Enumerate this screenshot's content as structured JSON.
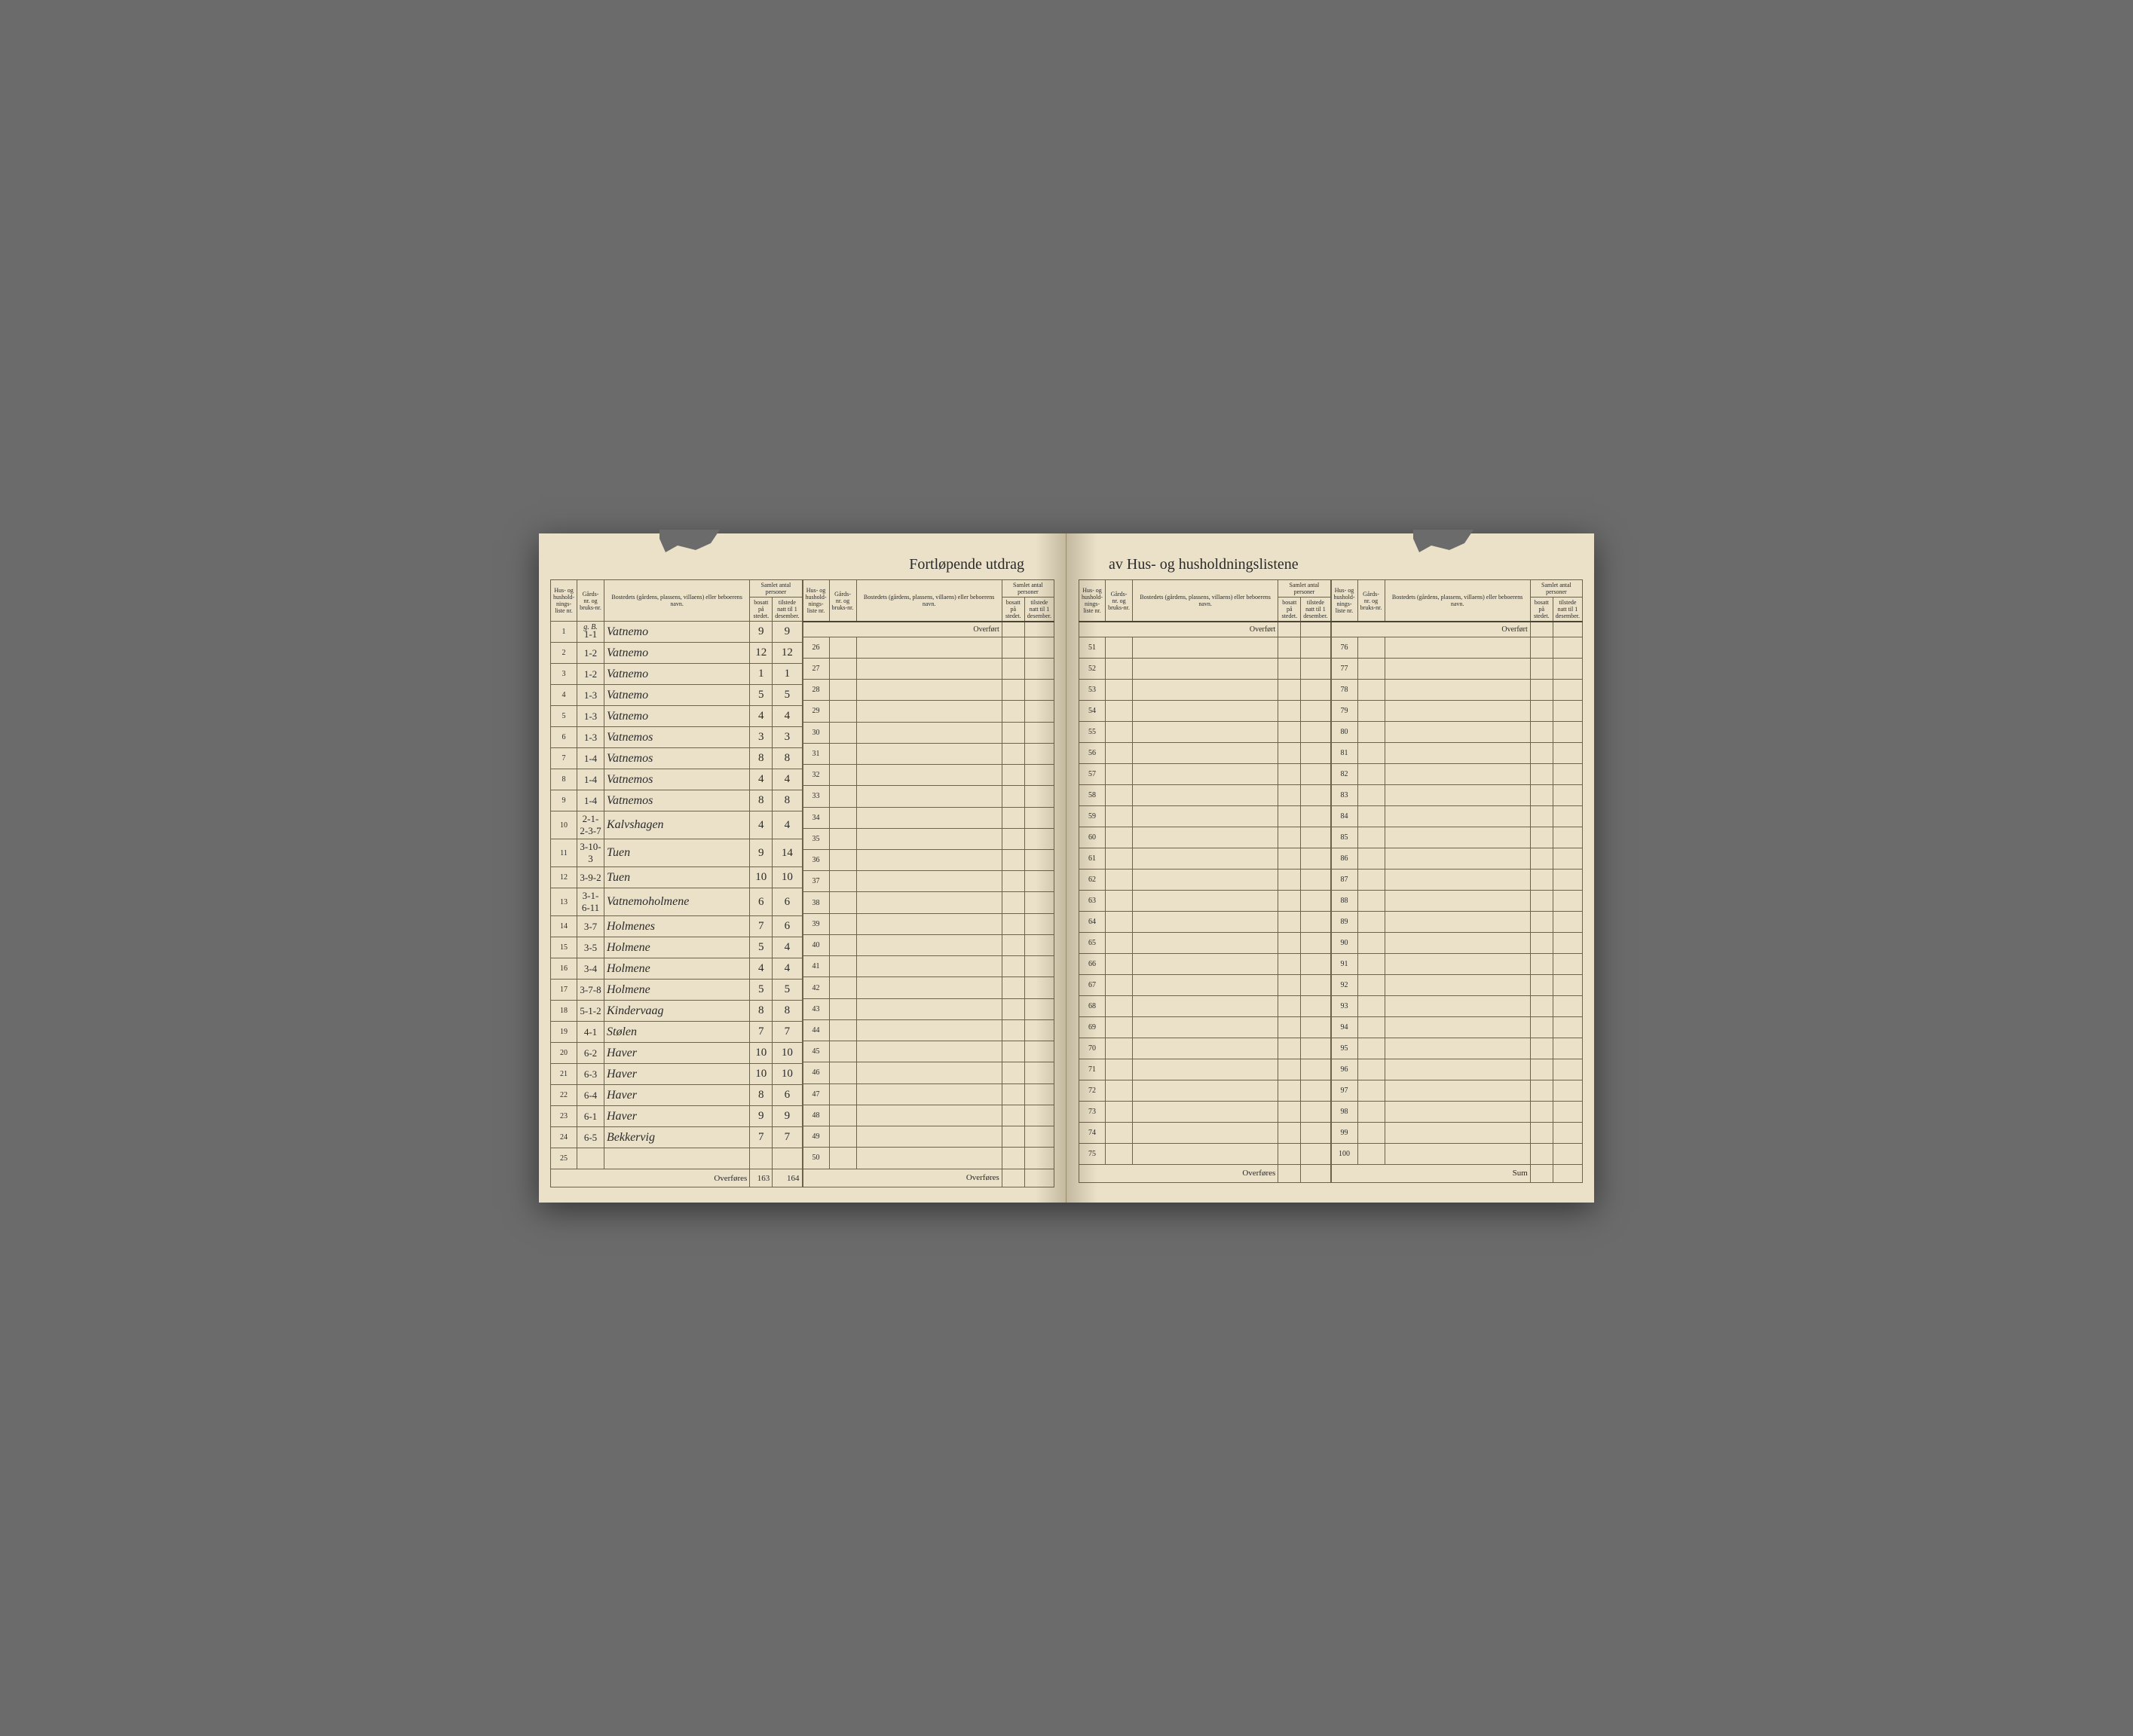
{
  "title_left": "Fortløpende utdrag",
  "title_right": "av Hus- og husholdningslistene",
  "headers": {
    "hus_nr": "Hus- og hushold-nings-liste nr.",
    "gards_nr": "Gårds-nr. og bruks-nr.",
    "bosted": "Bostedets (gårdens, plassens, villaens) eller beboerens navn.",
    "samlet": "Samlet antal personer",
    "bosatt": "bosatt på stedet.",
    "tilstede": "tilstede natt til 1 desember."
  },
  "overfort_label": "Overført",
  "overfores_label": "Overføres",
  "sum_label": "Sum",
  "gb_note": "g. B.",
  "rows": [
    {
      "n": 1,
      "g": "1-1",
      "name": "Vatnemo",
      "b": "9",
      "t": "9"
    },
    {
      "n": 2,
      "g": "1-2",
      "name": "Vatnemo",
      "b": "12",
      "t": "12"
    },
    {
      "n": 3,
      "g": "1-2",
      "name": "Vatnemo",
      "b": "1",
      "t": "1"
    },
    {
      "n": 4,
      "g": "1-3",
      "name": "Vatnemo",
      "b": "5",
      "t": "5"
    },
    {
      "n": 5,
      "g": "1-3",
      "name": "Vatnemo",
      "b": "4",
      "t": "4"
    },
    {
      "n": 6,
      "g": "1-3",
      "name": "Vatnemos",
      "b": "3",
      "t": "3"
    },
    {
      "n": 7,
      "g": "1-4",
      "name": "Vatnemos",
      "b": "8",
      "t": "8"
    },
    {
      "n": 8,
      "g": "1-4",
      "name": "Vatnemos",
      "b": "4",
      "t": "4"
    },
    {
      "n": 9,
      "g": "1-4",
      "name": "Vatnemos",
      "b": "8",
      "t": "8"
    },
    {
      "n": 10,
      "g": "2-1-2-3-7",
      "name": "Kalvshagen",
      "b": "4",
      "t": "4"
    },
    {
      "n": 11,
      "g": "3-10-3",
      "name": "Tuen",
      "b": "9",
      "t": "14"
    },
    {
      "n": 12,
      "g": "3-9-2",
      "name": "Tuen",
      "b": "10",
      "t": "10"
    },
    {
      "n": 13,
      "g": "3-1-6-11",
      "name": "Vatnemoholmene",
      "b": "6",
      "t": "6"
    },
    {
      "n": 14,
      "g": "3-7",
      "name": "Holmenes",
      "b": "7",
      "t": "6"
    },
    {
      "n": 15,
      "g": "3-5",
      "name": "Holmene",
      "b": "5",
      "t": "4"
    },
    {
      "n": 16,
      "g": "3-4",
      "name": "Holmene",
      "b": "4",
      "t": "4"
    },
    {
      "n": 17,
      "g": "3-7-8",
      "name": "Holmene",
      "b": "5",
      "t": "5"
    },
    {
      "n": 18,
      "g": "5-1-2",
      "name": "Kindervaag",
      "b": "8",
      "t": "8"
    },
    {
      "n": 19,
      "g": "4-1",
      "name": "Stølen",
      "b": "7",
      "t": "7"
    },
    {
      "n": 20,
      "g": "6-2",
      "name": "Haver",
      "b": "10",
      "t": "10"
    },
    {
      "n": 21,
      "g": "6-3",
      "name": "Haver",
      "b": "10",
      "t": "10"
    },
    {
      "n": 22,
      "g": "6-4",
      "name": "Haver",
      "b": "8",
      "t": "6"
    },
    {
      "n": 23,
      "g": "6-1",
      "name": "Haver",
      "b": "9",
      "t": "9"
    },
    {
      "n": 24,
      "g": "6-5",
      "name": "Bekkervig",
      "b": "7",
      "t": "7"
    },
    {
      "n": 25,
      "g": "",
      "name": "",
      "b": "",
      "t": ""
    }
  ],
  "totals": {
    "b": "163",
    "t": "164"
  },
  "empty_ranges": [
    [
      26,
      50
    ],
    [
      51,
      75
    ],
    [
      76,
      100
    ]
  ],
  "colors": {
    "paper": "#ebe1c9",
    "rule": "#6b624a",
    "ink_print": "#2a2a2a",
    "ink_hand": "#3a342a",
    "background": "#6b6b6b"
  },
  "typography": {
    "title_size_pt": 20,
    "header_size_pt": 8,
    "rownum_size_pt": 10,
    "handwriting_size_pt": 15
  }
}
